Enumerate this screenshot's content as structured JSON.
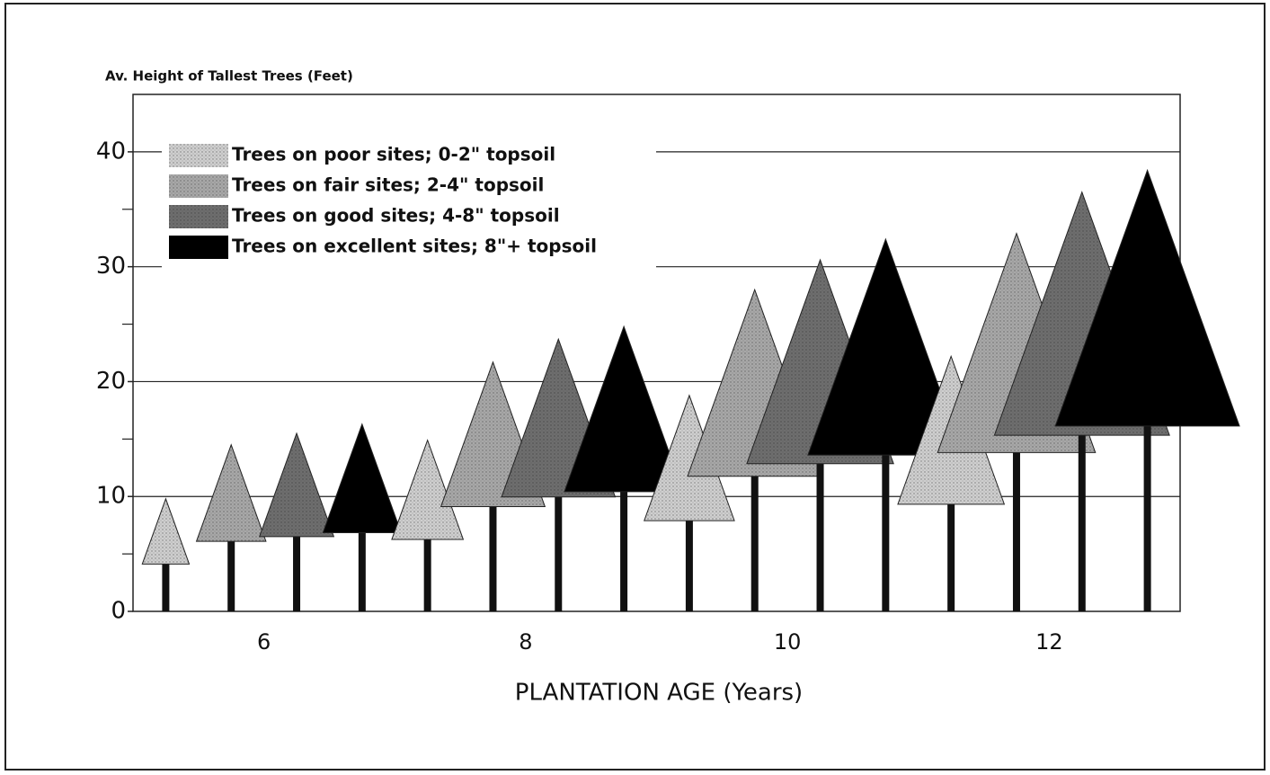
{
  "chart_data": {
    "type": "tree-bar",
    "y_label": "Av. Height of Tallest Trees (Feet)",
    "x_label": "PLANTATION AGE (Years)",
    "categories": [
      "6",
      "8",
      "10",
      "12"
    ],
    "series": [
      {
        "name": "Trees on poor sites; 0-2\" topsoil",
        "color": "#cfcfcf",
        "values": [
          9.8,
          14.9,
          18.8,
          22.2
        ]
      },
      {
        "name": "Trees on fair sites; 2-4\" topsoil",
        "color": "#a8a8a8",
        "values": [
          14.5,
          21.7,
          28,
          32.9
        ]
      },
      {
        "name": "Trees on good sites; 4-8\" topsoil",
        "color": "#6e6e6e",
        "values": [
          15.5,
          23.7,
          30.6,
          36.5
        ]
      },
      {
        "name": "Trees on excellent sites; 8\"+ topsoil",
        "color": "#000000",
        "values": [
          16.3,
          24.8,
          32.4,
          38.4
        ]
      }
    ],
    "ylim": [
      0,
      45
    ],
    "yticks": [
      0,
      10,
      20,
      30,
      40
    ],
    "yminor": [
      5,
      15,
      25,
      35
    ],
    "grid": true
  }
}
